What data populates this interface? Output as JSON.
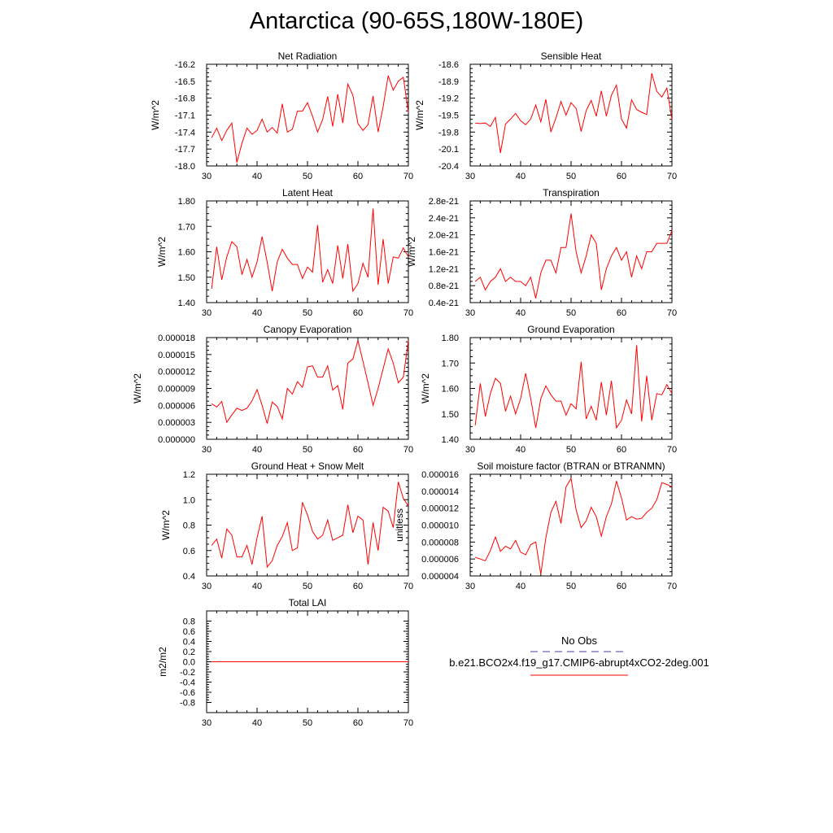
{
  "title": "Antarctica (90-65S,180W-180E)",
  "legend": {
    "obs_label": "No Obs",
    "case_label": "b.e21.BCO2x4.f19_g17.CMIP6-abrupt4xCO2-2deg.001",
    "obs_color": "#4040a0",
    "case_color": "#ff0000"
  },
  "chart_data": [
    {
      "type": "line",
      "title": "Net Radiation",
      "ylabel": "W/m^2",
      "xlim": [
        30,
        70
      ],
      "ylim": [
        -18.0,
        -16.2
      ],
      "xticks": [
        "30",
        "40",
        "50",
        "60",
        "70"
      ],
      "yticks": [
        "-18.0",
        "-17.7",
        "-17.4",
        "-17.1",
        "-16.8",
        "-16.5",
        "-16.2"
      ],
      "series": [
        {
          "color": "#ff0000",
          "x": [
            31,
            32,
            33,
            34,
            35,
            36,
            37,
            38,
            39,
            40,
            41,
            42,
            43,
            44,
            45,
            46,
            47,
            48,
            49,
            50,
            51,
            52,
            53,
            54,
            55,
            56,
            57,
            58,
            59,
            60,
            61,
            62,
            63,
            64,
            65,
            66,
            67,
            68,
            69,
            70
          ],
          "y": [
            -17.5,
            -17.33,
            -17.55,
            -17.37,
            -17.24,
            -17.94,
            -17.6,
            -17.33,
            -17.44,
            -17.37,
            -17.17,
            -17.4,
            -17.32,
            -17.42,
            -16.9,
            -17.4,
            -17.35,
            -17.03,
            -17.03,
            -16.88,
            -17.12,
            -17.4,
            -17.18,
            -16.77,
            -17.3,
            -16.73,
            -17.24,
            -16.55,
            -16.75,
            -17.25,
            -17.37,
            -17.27,
            -16.76,
            -17.4,
            -16.95,
            -16.4,
            -16.66,
            -16.5,
            -16.43,
            -17.05
          ]
        }
      ]
    },
    {
      "type": "line",
      "title": "Sensible Heat",
      "ylabel": "W/m^2",
      "xlim": [
        30,
        70
      ],
      "ylim": [
        -20.4,
        -18.6
      ],
      "xticks": [
        "30",
        "40",
        "50",
        "60",
        "70"
      ],
      "yticks": [
        "-20.4",
        "-20.1",
        "-19.8",
        "-19.5",
        "-19.2",
        "-18.9",
        "-18.6"
      ],
      "series": [
        {
          "color": "#ff0000",
          "x": [
            31,
            32,
            33,
            34,
            35,
            36,
            37,
            38,
            39,
            40,
            41,
            42,
            43,
            44,
            45,
            46,
            47,
            48,
            49,
            50,
            51,
            52,
            53,
            54,
            55,
            56,
            57,
            58,
            59,
            60,
            61,
            62,
            63,
            64,
            65,
            66,
            67,
            68,
            69,
            70
          ],
          "y": [
            -19.64,
            -19.65,
            -19.64,
            -19.7,
            -19.54,
            -20.17,
            -19.66,
            -19.57,
            -19.47,
            -19.6,
            -19.67,
            -19.57,
            -19.32,
            -19.62,
            -19.22,
            -19.8,
            -19.55,
            -19.26,
            -19.5,
            -19.28,
            -19.38,
            -19.79,
            -19.42,
            -19.24,
            -19.52,
            -19.07,
            -19.52,
            -19.15,
            -18.97,
            -19.57,
            -19.73,
            -19.23,
            -19.4,
            -19.45,
            -19.49,
            -18.76,
            -19.08,
            -19.18,
            -19.02,
            -19.58
          ]
        }
      ]
    },
    {
      "type": "line",
      "title": "Latent Heat",
      "ylabel": "W/m^2",
      "xlim": [
        30,
        70
      ],
      "ylim": [
        1.4,
        1.8
      ],
      "xticks": [
        "30",
        "40",
        "50",
        "60",
        "70"
      ],
      "yticks": [
        "1.40",
        "1.50",
        "1.60",
        "1.70",
        "1.80"
      ],
      "series": [
        {
          "color": "#ff0000",
          "x": [
            31,
            32,
            33,
            34,
            35,
            36,
            37,
            38,
            39,
            40,
            41,
            42,
            43,
            44,
            45,
            46,
            47,
            48,
            49,
            50,
            51,
            52,
            53,
            54,
            55,
            56,
            57,
            58,
            59,
            60,
            61,
            62,
            63,
            64,
            65,
            66,
            67,
            68,
            69,
            70
          ],
          "y": [
            1.455,
            1.62,
            1.49,
            1.58,
            1.64,
            1.62,
            1.51,
            1.57,
            1.5,
            1.56,
            1.66,
            1.56,
            1.445,
            1.56,
            1.61,
            1.575,
            1.55,
            1.55,
            1.495,
            1.54,
            1.52,
            1.705,
            1.48,
            1.53,
            1.475,
            1.625,
            1.495,
            1.63,
            1.445,
            1.475,
            1.555,
            1.5,
            1.77,
            1.47,
            1.65,
            1.475,
            1.58,
            1.575,
            1.615,
            1.58
          ]
        }
      ]
    },
    {
      "type": "line",
      "title": "Transpiration",
      "ylabel": "W/m^2",
      "xlim": [
        30,
        70
      ],
      "ylim": [
        4e-22,
        2.8e-21
      ],
      "xticks": [
        "30",
        "40",
        "50",
        "60",
        "70"
      ],
      "yticks": [
        "0.4e-21",
        "0.8e-21",
        "1.2e-21",
        "1.6e-21",
        "2.0e-21",
        "2.4e-21",
        "2.8e-21"
      ],
      "series": [
        {
          "color": "#ff0000",
          "x": [
            31,
            32,
            33,
            34,
            35,
            36,
            37,
            38,
            39,
            40,
            41,
            42,
            43,
            44,
            45,
            46,
            47,
            48,
            49,
            50,
            51,
            52,
            53,
            54,
            55,
            56,
            57,
            58,
            59,
            60,
            61,
            62,
            63,
            64,
            65,
            66,
            67,
            68,
            69,
            70
          ],
          "y": [
            9e-22,
            1e-21,
            7e-22,
            9e-22,
            1e-21,
            1.2e-21,
            9e-22,
            1e-21,
            9e-22,
            9e-22,
            8e-22,
            1e-21,
            5e-22,
            1.1e-21,
            1.4e-21,
            1.4e-21,
            1.1e-21,
            1.7e-21,
            1.7e-21,
            2.5e-21,
            1.6e-21,
            1.1e-21,
            1.5e-21,
            2e-21,
            1.8e-21,
            7e-22,
            1.2e-21,
            1.5e-21,
            1.7e-21,
            1.4e-21,
            1.6e-21,
            1e-21,
            1.5e-21,
            1.2e-21,
            1.6e-21,
            1.6e-21,
            1.8e-21,
            1.8e-21,
            1.8e-21,
            2.1e-21
          ]
        }
      ]
    },
    {
      "type": "line",
      "title": "Canopy Evaporation",
      "ylabel": "W/m^2",
      "xlim": [
        30,
        70
      ],
      "ylim": [
        0.0,
        1.8e-05
      ],
      "xticks": [
        "30",
        "40",
        "50",
        "60",
        "70"
      ],
      "yticks": [
        "0.000000",
        "0.000003",
        "0.000006",
        "0.000009",
        "0.000012",
        "0.000015",
        "0.000018"
      ],
      "series": [
        {
          "color": "#ff0000",
          "x": [
            31,
            32,
            33,
            34,
            35,
            36,
            37,
            38,
            39,
            40,
            41,
            42,
            43,
            44,
            45,
            46,
            47,
            48,
            49,
            50,
            51,
            52,
            53,
            54,
            55,
            56,
            57,
            58,
            59,
            60,
            61,
            62,
            63,
            64,
            65,
            66,
            67,
            68,
            69,
            70
          ],
          "y": [
            6.3e-06,
            5.7e-06,
            6.7e-06,
            3e-06,
            4.3e-06,
            5.5e-06,
            5.1e-06,
            5.5e-06,
            6.8e-06,
            8.8e-06,
            6e-06,
            2.8e-06,
            6.6e-06,
            5.8e-06,
            3.6e-06,
            9e-06,
            8e-06,
            1.02e-05,
            9.2e-06,
            1.28e-05,
            1.3e-05,
            1.1e-05,
            1.1e-05,
            1.3e-05,
            8.7e-06,
            9.5e-06,
            5.3e-06,
            1.35e-05,
            1.42e-05,
            1.75e-05,
            1.38e-05,
            1e-05,
            6e-06,
            9e-06,
            1.25e-05,
            1.6e-05,
            1.35e-05,
            1e-05,
            1.1e-05,
            1.75e-05
          ]
        }
      ]
    },
    {
      "type": "line",
      "title": "Ground Evaporation",
      "ylabel": "W/m^2",
      "xlim": [
        30,
        70
      ],
      "ylim": [
        1.4,
        1.8
      ],
      "xticks": [
        "30",
        "40",
        "50",
        "60",
        "70"
      ],
      "yticks": [
        "1.40",
        "1.50",
        "1.60",
        "1.70",
        "1.80"
      ],
      "series": [
        {
          "color": "#ff0000",
          "x": [
            31,
            32,
            33,
            34,
            35,
            36,
            37,
            38,
            39,
            40,
            41,
            42,
            43,
            44,
            45,
            46,
            47,
            48,
            49,
            50,
            51,
            52,
            53,
            54,
            55,
            56,
            57,
            58,
            59,
            60,
            61,
            62,
            63,
            64,
            65,
            66,
            67,
            68,
            69,
            70
          ],
          "y": [
            1.455,
            1.62,
            1.49,
            1.58,
            1.64,
            1.62,
            1.51,
            1.57,
            1.5,
            1.56,
            1.66,
            1.56,
            1.445,
            1.56,
            1.61,
            1.575,
            1.55,
            1.55,
            1.495,
            1.54,
            1.52,
            1.705,
            1.48,
            1.53,
            1.475,
            1.625,
            1.495,
            1.63,
            1.445,
            1.475,
            1.555,
            1.5,
            1.77,
            1.47,
            1.65,
            1.475,
            1.58,
            1.575,
            1.615,
            1.58
          ]
        }
      ]
    },
    {
      "type": "line",
      "title": "Ground Heat + Snow Melt",
      "ylabel": "W/m^2",
      "xlim": [
        30,
        70
      ],
      "ylim": [
        0.4,
        1.2
      ],
      "xticks": [
        "30",
        "40",
        "50",
        "60",
        "70"
      ],
      "yticks": [
        "0.4",
        "0.6",
        "0.8",
        "1.0",
        "1.2"
      ],
      "series": [
        {
          "color": "#ff0000",
          "x": [
            31,
            32,
            33,
            34,
            35,
            36,
            37,
            38,
            39,
            40,
            41,
            42,
            43,
            44,
            45,
            46,
            47,
            48,
            49,
            50,
            51,
            52,
            53,
            54,
            55,
            56,
            57,
            58,
            59,
            60,
            61,
            62,
            63,
            64,
            65,
            66,
            67,
            68,
            69,
            70
          ],
          "y": [
            0.64,
            0.69,
            0.54,
            0.77,
            0.72,
            0.55,
            0.55,
            0.64,
            0.49,
            0.7,
            0.87,
            0.47,
            0.52,
            0.64,
            0.71,
            0.82,
            0.6,
            0.62,
            0.98,
            0.88,
            0.75,
            0.69,
            0.72,
            0.84,
            0.68,
            0.7,
            0.72,
            0.96,
            0.74,
            0.87,
            0.84,
            0.49,
            0.82,
            0.6,
            0.94,
            0.91,
            0.78,
            1.14,
            1.01,
            0.95
          ]
        }
      ]
    },
    {
      "type": "line",
      "title": "Soil moisture factor (BTRAN or BTRANMN)",
      "ylabel": "unitless",
      "xlim": [
        30,
        70
      ],
      "ylim": [
        4e-06,
        1.6e-05
      ],
      "xticks": [
        "30",
        "40",
        "50",
        "60",
        "70"
      ],
      "yticks": [
        "0.000004",
        "0.000006",
        "0.000008",
        "0.000010",
        "0.000012",
        "0.000014",
        "0.000016"
      ],
      "series": [
        {
          "color": "#ff0000",
          "x": [
            31,
            32,
            33,
            34,
            35,
            36,
            37,
            38,
            39,
            40,
            41,
            42,
            43,
            44,
            45,
            46,
            47,
            48,
            49,
            50,
            51,
            52,
            53,
            54,
            55,
            56,
            57,
            58,
            59,
            60,
            61,
            62,
            63,
            64,
            65,
            66,
            67,
            68,
            69,
            70
          ],
          "y": [
            6.2e-06,
            6e-06,
            5.8e-06,
            7e-06,
            8.6e-06,
            6.9e-06,
            7.5e-06,
            7.2e-06,
            8.2e-06,
            6.8e-06,
            6.5e-06,
            7.7e-06,
            8e-06,
            4.2e-06,
            8.5e-06,
            1.15e-05,
            1.28e-05,
            1.02e-05,
            1.45e-05,
            1.55e-05,
            1.18e-05,
            9.7e-06,
            1.05e-05,
            1.21e-05,
            1.1e-05,
            8.7e-06,
            1.1e-05,
            1.25e-05,
            1.52e-05,
            1.32e-05,
            1.06e-05,
            1.1e-05,
            1.07e-05,
            1.08e-05,
            1.15e-05,
            1.2e-05,
            1.3e-05,
            1.5e-05,
            1.48e-05,
            1.45e-05
          ]
        }
      ]
    },
    {
      "type": "line",
      "title": "Total LAI",
      "ylabel": "m2/m2",
      "xlim": [
        30,
        70
      ],
      "ylim": [
        -1.0,
        1.0
      ],
      "xticks": [
        "30",
        "40",
        "50",
        "60",
        "70"
      ],
      "yticks": [
        "-0.8",
        "-0.6",
        "-0.4",
        "-0.2",
        "0.0",
        "0.2",
        "0.4",
        "0.6",
        "0.8"
      ],
      "series": [
        {
          "color": "#ff0000",
          "x": [
            31,
            32,
            33,
            34,
            35,
            36,
            37,
            38,
            39,
            40,
            41,
            42,
            43,
            44,
            45,
            46,
            47,
            48,
            49,
            50,
            51,
            52,
            53,
            54,
            55,
            56,
            57,
            58,
            59,
            60,
            61,
            62,
            63,
            64,
            65,
            66,
            67,
            68,
            69,
            70
          ],
          "y": [
            0,
            0,
            0,
            0,
            0,
            0,
            0,
            0,
            0,
            0,
            0,
            0,
            0,
            0,
            0,
            0,
            0,
            0,
            0,
            0,
            0,
            0,
            0,
            0,
            0,
            0,
            0,
            0,
            0,
            0,
            0,
            0,
            0,
            0,
            0,
            0,
            0,
            0,
            0,
            0
          ]
        }
      ]
    }
  ]
}
